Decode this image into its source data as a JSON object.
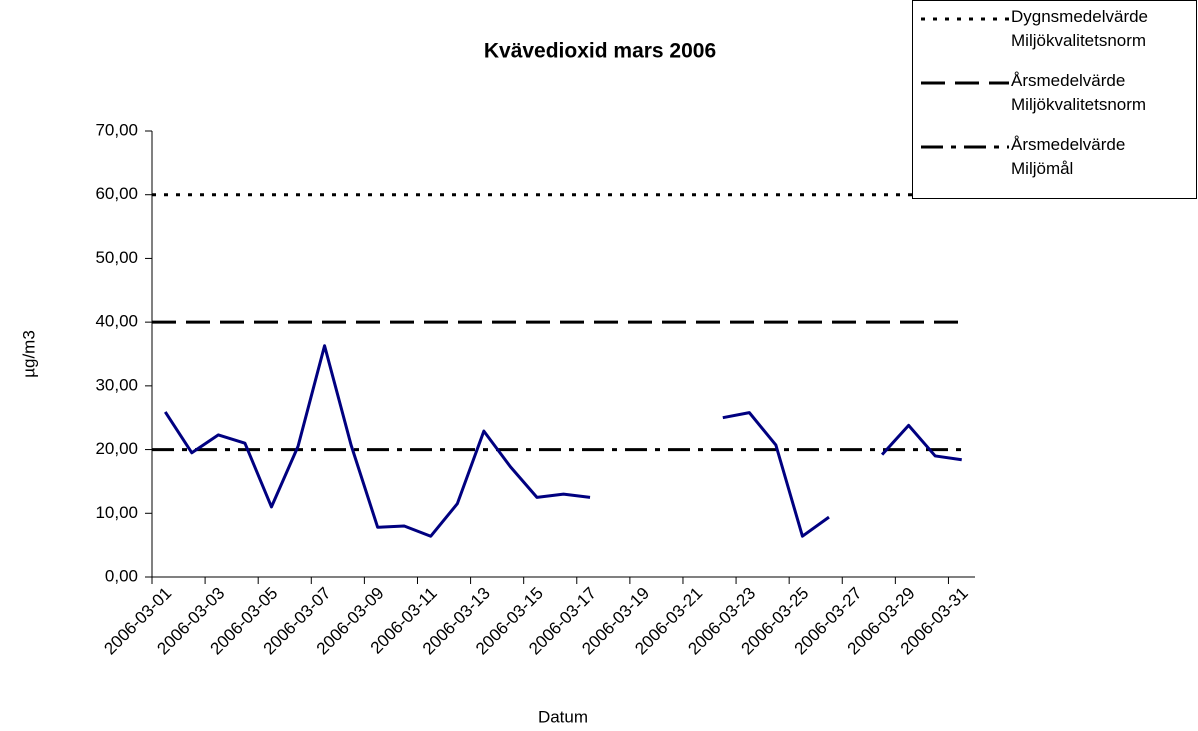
{
  "chart_data": {
    "type": "line",
    "title": "Kvävedioxid mars 2006",
    "x_label": "Datum",
    "y_label": "µg/m3",
    "categories": [
      "2006-03-01",
      null,
      "2006-03-03",
      null,
      "2006-03-05",
      null,
      "2006-03-07",
      null,
      "2006-03-09",
      null,
      "2006-03-11",
      null,
      "2006-03-13",
      null,
      "2006-03-15",
      null,
      "2006-03-17",
      null,
      "2006-03-19",
      null,
      "2006-03-21",
      null,
      "2006-03-23",
      null,
      "2006-03-25",
      null,
      "2006-03-27",
      null,
      "2006-03-29",
      null,
      "2006-03-31"
    ],
    "series": [
      {
        "color": "#000080",
        "values": [
          25.9,
          19.5,
          22.3,
          21.0,
          11.0,
          20.5,
          36.3,
          20.7,
          7.8,
          8.0,
          6.4,
          11.5,
          22.9,
          17.3,
          12.5,
          13.0,
          12.5,
          null,
          null,
          null,
          null,
          25.0,
          25.8,
          20.7,
          6.4,
          9.4,
          null,
          19.2,
          23.8,
          19.0,
          18.4
        ]
      }
    ],
    "reference_lines": [
      {
        "name": "Dygnsmedelvärde Miljökvalitetsnorm",
        "value": 60,
        "dash": "dotted",
        "color": "#000000"
      },
      {
        "name": "Årsmedelvärde Miljökvalitetsnorm",
        "value": 40,
        "dash": "dashed",
        "color": "#000000"
      },
      {
        "name": "Årsmedelvärde Miljömål",
        "value": 20,
        "dash": "dashdot",
        "color": "#000000"
      }
    ],
    "ylim": [
      0,
      70
    ],
    "yticks": [
      {
        "value": 0,
        "label": "0,00"
      },
      {
        "value": 10,
        "label": "10,00"
      },
      {
        "value": 20,
        "label": "20,00"
      },
      {
        "value": 30,
        "label": "30,00"
      },
      {
        "value": 40,
        "label": "40,00"
      },
      {
        "value": 50,
        "label": "50,00"
      },
      {
        "value": 60,
        "label": "60,00"
      },
      {
        "value": 70,
        "label": "70,00"
      }
    ],
    "legend": "top-right"
  }
}
